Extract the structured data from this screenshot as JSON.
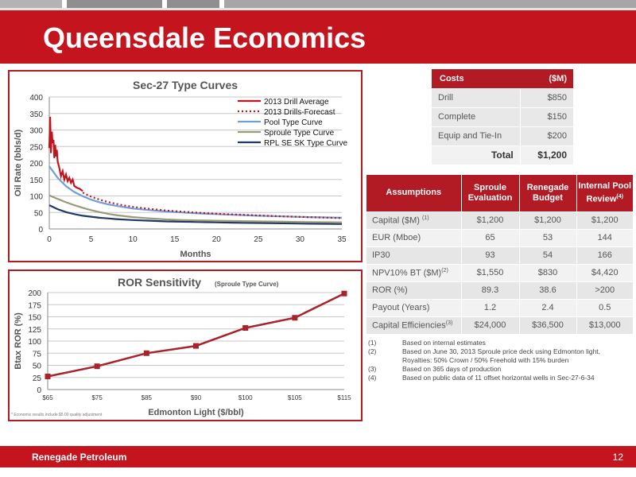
{
  "title": "Queensdale Economics",
  "type_curves": {
    "chart_data": {
      "type": "line",
      "title": "Sec-27 Type Curves",
      "xlabel": "Months",
      "ylabel": "Oil Rate (bbls/d)",
      "xlim": [
        0,
        35
      ],
      "ylim": [
        0,
        400
      ],
      "x_ticks": [
        "0",
        "5",
        "10",
        "15",
        "20",
        "25",
        "30",
        "35"
      ],
      "y_ticks": [
        "0",
        "50",
        "100",
        "150",
        "200",
        "250",
        "300",
        "350",
        "400"
      ],
      "grid": true,
      "legend": "top-right",
      "series": [
        {
          "name": "2013 Drill Average",
          "style": "solid",
          "color": "#c0141e",
          "x": [
            0,
            0.1,
            0.2,
            0.3,
            0.4,
            0.5,
            0.6,
            0.7,
            0.8,
            0.9,
            1.0,
            1.2,
            1.4,
            1.6,
            1.8,
            2.0,
            2.2,
            2.4,
            2.6,
            2.8,
            3.0,
            3.3,
            3.6,
            4.0
          ],
          "y": [
            245,
            340,
            230,
            295,
            260,
            270,
            215,
            255,
            220,
            240,
            205,
            185,
            160,
            175,
            150,
            165,
            145,
            155,
            140,
            150,
            130,
            125,
            122,
            115
          ]
        },
        {
          "name": "2013 Drills-Forecast",
          "style": "dotted",
          "color": "#c0141e",
          "x": [
            4,
            5,
            6,
            7,
            8,
            9,
            10,
            12,
            14,
            16,
            18,
            20,
            22,
            25,
            28,
            31,
            35
          ],
          "y": [
            110,
            98,
            89,
            82,
            76,
            71,
            67,
            61,
            56,
            52,
            49,
            46,
            44,
            41,
            38,
            36,
            33
          ]
        },
        {
          "name": "Pool Type Curve",
          "style": "solid",
          "color": "#6e9fd9",
          "x": [
            0,
            1,
            2,
            3,
            4,
            5,
            6,
            7,
            8,
            10,
            12,
            14,
            16,
            18,
            20,
            22,
            25,
            28,
            31,
            35
          ],
          "y": [
            190,
            155,
            130,
            112,
            99,
            89,
            81,
            75,
            70,
            62,
            57,
            53,
            50,
            47,
            45,
            43,
            40,
            38,
            36,
            34
          ]
        },
        {
          "name": "Sproule Type Curve",
          "style": "solid",
          "color": "#9a9a7a",
          "x": [
            0,
            1,
            2,
            3,
            4,
            5,
            6,
            7,
            8,
            10,
            12,
            14,
            16,
            18,
            20,
            22,
            25,
            28,
            31,
            35
          ],
          "y": [
            102,
            91,
            81,
            72,
            64,
            57,
            51,
            46,
            42,
            36,
            32,
            29,
            27,
            26,
            25,
            24,
            23,
            22,
            21,
            20
          ]
        },
        {
          "name": "RPL SE SK Type Curve",
          "style": "solid",
          "color": "#1f3864",
          "x": [
            0,
            1,
            2,
            3,
            4,
            5,
            6,
            7,
            8,
            10,
            12,
            14,
            16,
            18,
            20,
            22,
            25,
            28,
            31,
            35
          ],
          "y": [
            72,
            60,
            51,
            45,
            40,
            37,
            34,
            32,
            30,
            27,
            25,
            23,
            22,
            21,
            20,
            19,
            18,
            17,
            16,
            15
          ]
        }
      ]
    }
  },
  "ror": {
    "chart_data": {
      "type": "line",
      "title": "ROR Sensitivity",
      "subtitle": "(Sproule Type Curve)",
      "xlabel": "Edmonton Light ($/bbl)",
      "ylabel": "Btax ROR (%)",
      "categories": [
        "$65",
        "$75",
        "$85",
        "$90",
        "$100",
        "$105",
        "$115"
      ],
      "values": [
        27,
        48,
        75,
        90,
        127,
        148,
        198
      ],
      "ylim": [
        0,
        200
      ],
      "y_ticks": [
        "0",
        "25",
        "50",
        "75",
        "100",
        "125",
        "150",
        "175",
        "200"
      ],
      "grid": true,
      "color": "#a8232b"
    },
    "footnote": "* Economic results include $5.00 quality adjustment"
  },
  "costs": {
    "header": [
      "Costs",
      "($M)"
    ],
    "rows": [
      {
        "label": "Drill",
        "value": "$850"
      },
      {
        "label": "Complete",
        "value": "$150"
      },
      {
        "label": "Equip and Tie-In",
        "value": "$200"
      }
    ],
    "total": {
      "label": "Total",
      "value": "$1,200"
    }
  },
  "assumptions": {
    "header": {
      "c0": "Assumptions",
      "c1": "Sproule Evaluation",
      "c2": "Renegade Budget",
      "c3": "Internal Pool Review",
      "c3_sup": "(4)"
    },
    "rows": [
      {
        "label": "Capital ($M)",
        "sup": "(1)",
        "sproule": "$1,200",
        "budget": "$1,200",
        "pool": "$1,200"
      },
      {
        "label": "EUR (Mboe)",
        "sup": "",
        "sproule": "65",
        "budget": "53",
        "pool": "144"
      },
      {
        "label": "IP30",
        "sup": "",
        "sproule": "93",
        "budget": "54",
        "pool": "166"
      },
      {
        "label": "NPV10% BT ($M)",
        "sup": "(2)",
        "sproule": "$1,550",
        "budget": "$830",
        "pool": "$4,420"
      },
      {
        "label": "ROR (%)",
        "sup": "",
        "sproule": "89.3",
        "budget": "38.6",
        "pool": ">200"
      },
      {
        "label": "Payout (Years)",
        "sup": "",
        "sproule": "1.2",
        "budget": "2.4",
        "pool": "0.5"
      },
      {
        "label": "Capital Efficiencies",
        "sup": "(3)",
        "sproule": "$24,000",
        "budget": "$36,500",
        "pool": "$13,000"
      }
    ]
  },
  "notes": [
    {
      "num": "(1)",
      "text": "Based on internal estimates"
    },
    {
      "num": "(2)",
      "text": "Based on June 30, 2013 Sproule price deck using Edmonton light, Royalties: 50% Crown / 50% Freehold with 15% burden"
    },
    {
      "num": "(3)",
      "text": "Based on 365 days of production"
    },
    {
      "num": "(4)",
      "text": "Based on public data of 11 offset horizontal wells in Sec-27-6-34"
    }
  ],
  "footer": {
    "company": "Renegade Petroleum",
    "page": "12"
  }
}
